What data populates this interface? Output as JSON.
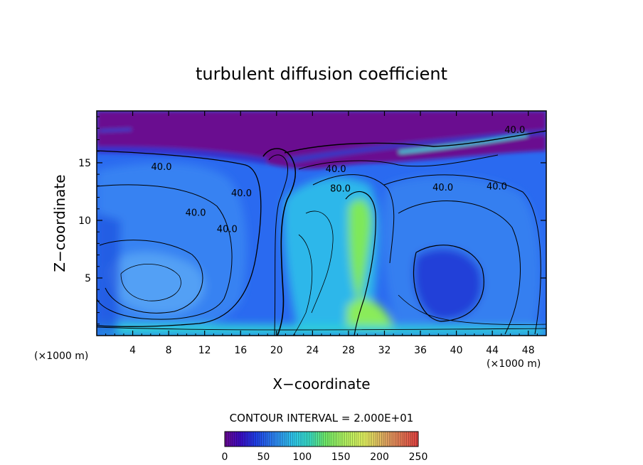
{
  "chart_data": {
    "type": "heatmap",
    "title": "turbulent diffusion coefficient",
    "xlabel": "X−coordinate",
    "ylabel": "Z−coordinate",
    "x_unit_left": "(×1000 m)",
    "x_unit_right": "(×1000 m)",
    "xlim": [
      0,
      50
    ],
    "ylim": [
      0,
      19.5
    ],
    "x_ticks": [
      4,
      8,
      12,
      16,
      20,
      24,
      28,
      32,
      36,
      40,
      44,
      48
    ],
    "y_ticks": [
      5,
      10,
      15
    ],
    "contour_interval_text": "CONTOUR INTERVAL =  2.000E+01",
    "colorbar": {
      "min": 0,
      "max": 250,
      "ticks": [
        0,
        50,
        100,
        150,
        200,
        250
      ]
    },
    "contour_labels": [
      {
        "text": "40.0",
        "x": 7.2,
        "y": 14.7
      },
      {
        "text": "40.0",
        "x": 16.1,
        "y": 12.4
      },
      {
        "text": "40.0",
        "x": 11.0,
        "y": 10.7
      },
      {
        "text": "40.0",
        "x": 14.5,
        "y": 9.3
      },
      {
        "text": "40.0",
        "x": 26.6,
        "y": 14.5
      },
      {
        "text": "80.0",
        "x": 27.1,
        "y": 12.8
      },
      {
        "text": "40.0",
        "x": 38.5,
        "y": 12.9
      },
      {
        "text": "40.0",
        "x": 44.5,
        "y": 13.0
      },
      {
        "text": "40.0",
        "x": 46.5,
        "y": 17.9
      }
    ],
    "colormap": [
      {
        "v": 0,
        "c": "#6a0a90"
      },
      {
        "v": 20,
        "c": "#3b0cc2"
      },
      {
        "v": 40,
        "c": "#1f3fe6"
      },
      {
        "v": 60,
        "c": "#2d86f0"
      },
      {
        "v": 80,
        "c": "#2fc8e8"
      },
      {
        "v": 100,
        "c": "#38d9c0"
      },
      {
        "v": 120,
        "c": "#6fe868"
      },
      {
        "v": 150,
        "c": "#b0f060"
      },
      {
        "v": 180,
        "c": "#e0f060"
      },
      {
        "v": 210,
        "c": "#e0a060"
      },
      {
        "v": 250,
        "c": "#e04040"
      }
    ]
  }
}
